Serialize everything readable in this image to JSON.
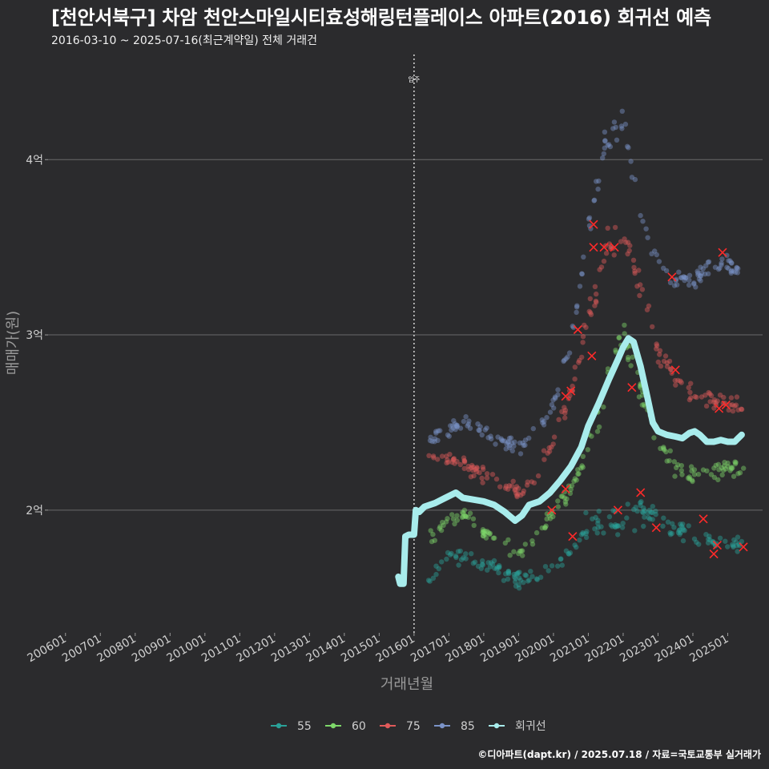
{
  "title": "[천안서북구] 차암 천안스마일시티효성해링턴플레이스 아파트(2016) 회귀선 예측",
  "subtitle": "2016-03-10 ~ 2025-07-16(최근계약일) 전체 거래건",
  "caption": "©디아파트(dapt.kr) / 2025.07.18 / 자료=국토교통부 실거래가",
  "chart_data": {
    "type": "scatter",
    "title": "[천안서북구] 차암 천안스마일시티효성해링턴플레이스 아파트(2016) 회귀선 예측",
    "xlabel": "거래년월",
    "ylabel": "매매가(원)",
    "xlim": [
      2005.5,
      2026.0
    ],
    "ylim": [
      1.3,
      4.6
    ],
    "y_unit": "억",
    "yticks": [
      {
        "value": 2,
        "label": "2억"
      },
      {
        "value": 3,
        "label": "3억"
      },
      {
        "value": 4,
        "label": "4억"
      }
    ],
    "xticks": [
      {
        "value": 2006,
        "label": "200601"
      },
      {
        "value": 2007,
        "label": "200701"
      },
      {
        "value": 2008,
        "label": "200801"
      },
      {
        "value": 2009,
        "label": "200901"
      },
      {
        "value": 2010,
        "label": "201001"
      },
      {
        "value": 2011,
        "label": "201101"
      },
      {
        "value": 2012,
        "label": "201201"
      },
      {
        "value": 2013,
        "label": "201301"
      },
      {
        "value": 2014,
        "label": "201401"
      },
      {
        "value": 2015,
        "label": "201501"
      },
      {
        "value": 2016,
        "label": "201601"
      },
      {
        "value": 2017,
        "label": "201701"
      },
      {
        "value": 2018,
        "label": "201801"
      },
      {
        "value": 2019,
        "label": "201901"
      },
      {
        "value": 2020,
        "label": "202001"
      },
      {
        "value": 2021,
        "label": "202101"
      },
      {
        "value": 2022,
        "label": "202201"
      },
      {
        "value": 2023,
        "label": "202301"
      },
      {
        "value": 2024,
        "label": "202401"
      },
      {
        "value": 2025,
        "label": "202501"
      }
    ],
    "vline": {
      "x": 2016.0,
      "label": "입주"
    },
    "series": [
      {
        "name": "55",
        "color": "#2aa198",
        "trend": [
          [
            2016.5,
            1.62
          ],
          [
            2017.0,
            1.75
          ],
          [
            2017.5,
            1.72
          ],
          [
            2018.0,
            1.68
          ],
          [
            2018.5,
            1.66
          ],
          [
            2019.0,
            1.6
          ],
          [
            2019.5,
            1.62
          ],
          [
            2020.0,
            1.7
          ],
          [
            2020.5,
            1.76
          ],
          [
            2021.0,
            1.9
          ],
          [
            2021.5,
            1.95
          ],
          [
            2022.0,
            1.92
          ],
          [
            2022.5,
            2.0
          ],
          [
            2023.0,
            1.95
          ],
          [
            2023.5,
            1.9
          ],
          [
            2024.0,
            1.85
          ],
          [
            2024.5,
            1.82
          ],
          [
            2025.0,
            1.8
          ],
          [
            2025.4,
            1.8
          ]
        ]
      },
      {
        "name": "60",
        "color": "#7ed86a",
        "trend": [
          [
            2016.5,
            1.85
          ],
          [
            2017.0,
            1.95
          ],
          [
            2017.5,
            1.98
          ],
          [
            2018.0,
            1.88
          ],
          [
            2018.5,
            1.8
          ],
          [
            2019.0,
            1.75
          ],
          [
            2019.5,
            1.82
          ],
          [
            2020.0,
            2.0
          ],
          [
            2020.5,
            2.12
          ],
          [
            2021.0,
            2.4
          ],
          [
            2021.5,
            2.7
          ],
          [
            2022.0,
            3.0
          ],
          [
            2022.5,
            2.7
          ],
          [
            2023.0,
            2.4
          ],
          [
            2023.5,
            2.25
          ],
          [
            2024.0,
            2.2
          ],
          [
            2024.5,
            2.22
          ],
          [
            2025.0,
            2.25
          ],
          [
            2025.4,
            2.2
          ]
        ]
      },
      {
        "name": "75",
        "color": "#e05a5a",
        "trend": [
          [
            2016.5,
            2.3
          ],
          [
            2017.0,
            2.3
          ],
          [
            2017.5,
            2.25
          ],
          [
            2018.0,
            2.2
          ],
          [
            2018.5,
            2.15
          ],
          [
            2019.0,
            2.1
          ],
          [
            2019.5,
            2.2
          ],
          [
            2020.0,
            2.4
          ],
          [
            2020.5,
            2.65
          ],
          [
            2021.0,
            3.1
          ],
          [
            2021.5,
            3.5
          ],
          [
            2022.0,
            3.55
          ],
          [
            2022.5,
            3.3
          ],
          [
            2023.0,
            2.9
          ],
          [
            2023.5,
            2.75
          ],
          [
            2024.0,
            2.65
          ],
          [
            2024.5,
            2.65
          ],
          [
            2025.0,
            2.6
          ],
          [
            2025.4,
            2.6
          ]
        ]
      },
      {
        "name": "85",
        "color": "#7b93c8",
        "trend": [
          [
            2016.5,
            2.4
          ],
          [
            2017.0,
            2.45
          ],
          [
            2017.5,
            2.5
          ],
          [
            2018.0,
            2.45
          ],
          [
            2018.5,
            2.38
          ],
          [
            2019.0,
            2.35
          ],
          [
            2019.5,
            2.45
          ],
          [
            2020.0,
            2.6
          ],
          [
            2020.5,
            2.95
          ],
          [
            2021.0,
            3.6
          ],
          [
            2021.5,
            4.1
          ],
          [
            2022.0,
            4.2
          ],
          [
            2022.5,
            3.7
          ],
          [
            2023.0,
            3.4
          ],
          [
            2023.5,
            3.3
          ],
          [
            2024.0,
            3.3
          ],
          [
            2024.5,
            3.4
          ],
          [
            2025.0,
            3.4
          ],
          [
            2025.4,
            3.35
          ]
        ]
      }
    ],
    "regression": {
      "name": "회귀선",
      "color": "#a8ecec",
      "points": [
        [
          2015.55,
          1.62
        ],
        [
          2015.6,
          1.58
        ],
        [
          2015.7,
          1.58
        ],
        [
          2015.75,
          1.85
        ],
        [
          2015.85,
          1.86
        ],
        [
          2016.0,
          1.86
        ],
        [
          2016.05,
          2.0
        ],
        [
          2016.15,
          1.99
        ],
        [
          2016.3,
          2.02
        ],
        [
          2016.6,
          2.04
        ],
        [
          2016.9,
          2.07
        ],
        [
          2017.2,
          2.1
        ],
        [
          2017.4,
          2.07
        ],
        [
          2017.7,
          2.06
        ],
        [
          2018.0,
          2.05
        ],
        [
          2018.3,
          2.03
        ],
        [
          2018.6,
          1.99
        ],
        [
          2018.9,
          1.94
        ],
        [
          2019.1,
          1.97
        ],
        [
          2019.3,
          2.03
        ],
        [
          2019.6,
          2.05
        ],
        [
          2019.9,
          2.1
        ],
        [
          2020.2,
          2.17
        ],
        [
          2020.5,
          2.25
        ],
        [
          2020.8,
          2.36
        ],
        [
          2021.0,
          2.48
        ],
        [
          2021.3,
          2.61
        ],
        [
          2021.6,
          2.75
        ],
        [
          2021.85,
          2.86
        ],
        [
          2022.0,
          2.93
        ],
        [
          2022.15,
          2.98
        ],
        [
          2022.3,
          2.96
        ],
        [
          2022.5,
          2.82
        ],
        [
          2022.7,
          2.64
        ],
        [
          2022.85,
          2.5
        ],
        [
          2023.0,
          2.45
        ],
        [
          2023.25,
          2.43
        ],
        [
          2023.5,
          2.42
        ],
        [
          2023.7,
          2.41
        ],
        [
          2023.9,
          2.44
        ],
        [
          2024.05,
          2.45
        ],
        [
          2024.2,
          2.43
        ],
        [
          2024.4,
          2.39
        ],
        [
          2024.6,
          2.39
        ],
        [
          2024.8,
          2.4
        ],
        [
          2025.0,
          2.39
        ],
        [
          2025.2,
          2.39
        ],
        [
          2025.3,
          2.41
        ],
        [
          2025.4,
          2.43
        ]
      ]
    },
    "highlighted": [
      [
        2019.95,
        2.0
      ],
      [
        2020.35,
        2.12
      ],
      [
        2020.55,
        1.85
      ],
      [
        2020.35,
        2.65
      ],
      [
        2020.7,
        3.03
      ],
      [
        2021.15,
        3.63
      ],
      [
        2021.15,
        3.5
      ],
      [
        2021.45,
        3.5
      ],
      [
        2021.75,
        3.5
      ],
      [
        2021.85,
        2.0
      ],
      [
        2021.1,
        2.88
      ],
      [
        2022.25,
        2.7
      ],
      [
        2022.5,
        2.1
      ],
      [
        2022.95,
        1.9
      ],
      [
        2023.4,
        3.33
      ],
      [
        2023.5,
        2.8
      ],
      [
        2024.3,
        1.95
      ],
      [
        2024.6,
        1.75
      ],
      [
        2024.7,
        1.8
      ],
      [
        2024.85,
        3.47
      ],
      [
        2024.95,
        2.6
      ],
      [
        2025.45,
        1.79
      ],
      [
        2020.5,
        2.68
      ],
      [
        2024.75,
        2.58
      ]
    ],
    "legend": {
      "position": "bottom",
      "items": [
        "55",
        "60",
        "75",
        "85",
        "회귀선"
      ]
    }
  }
}
